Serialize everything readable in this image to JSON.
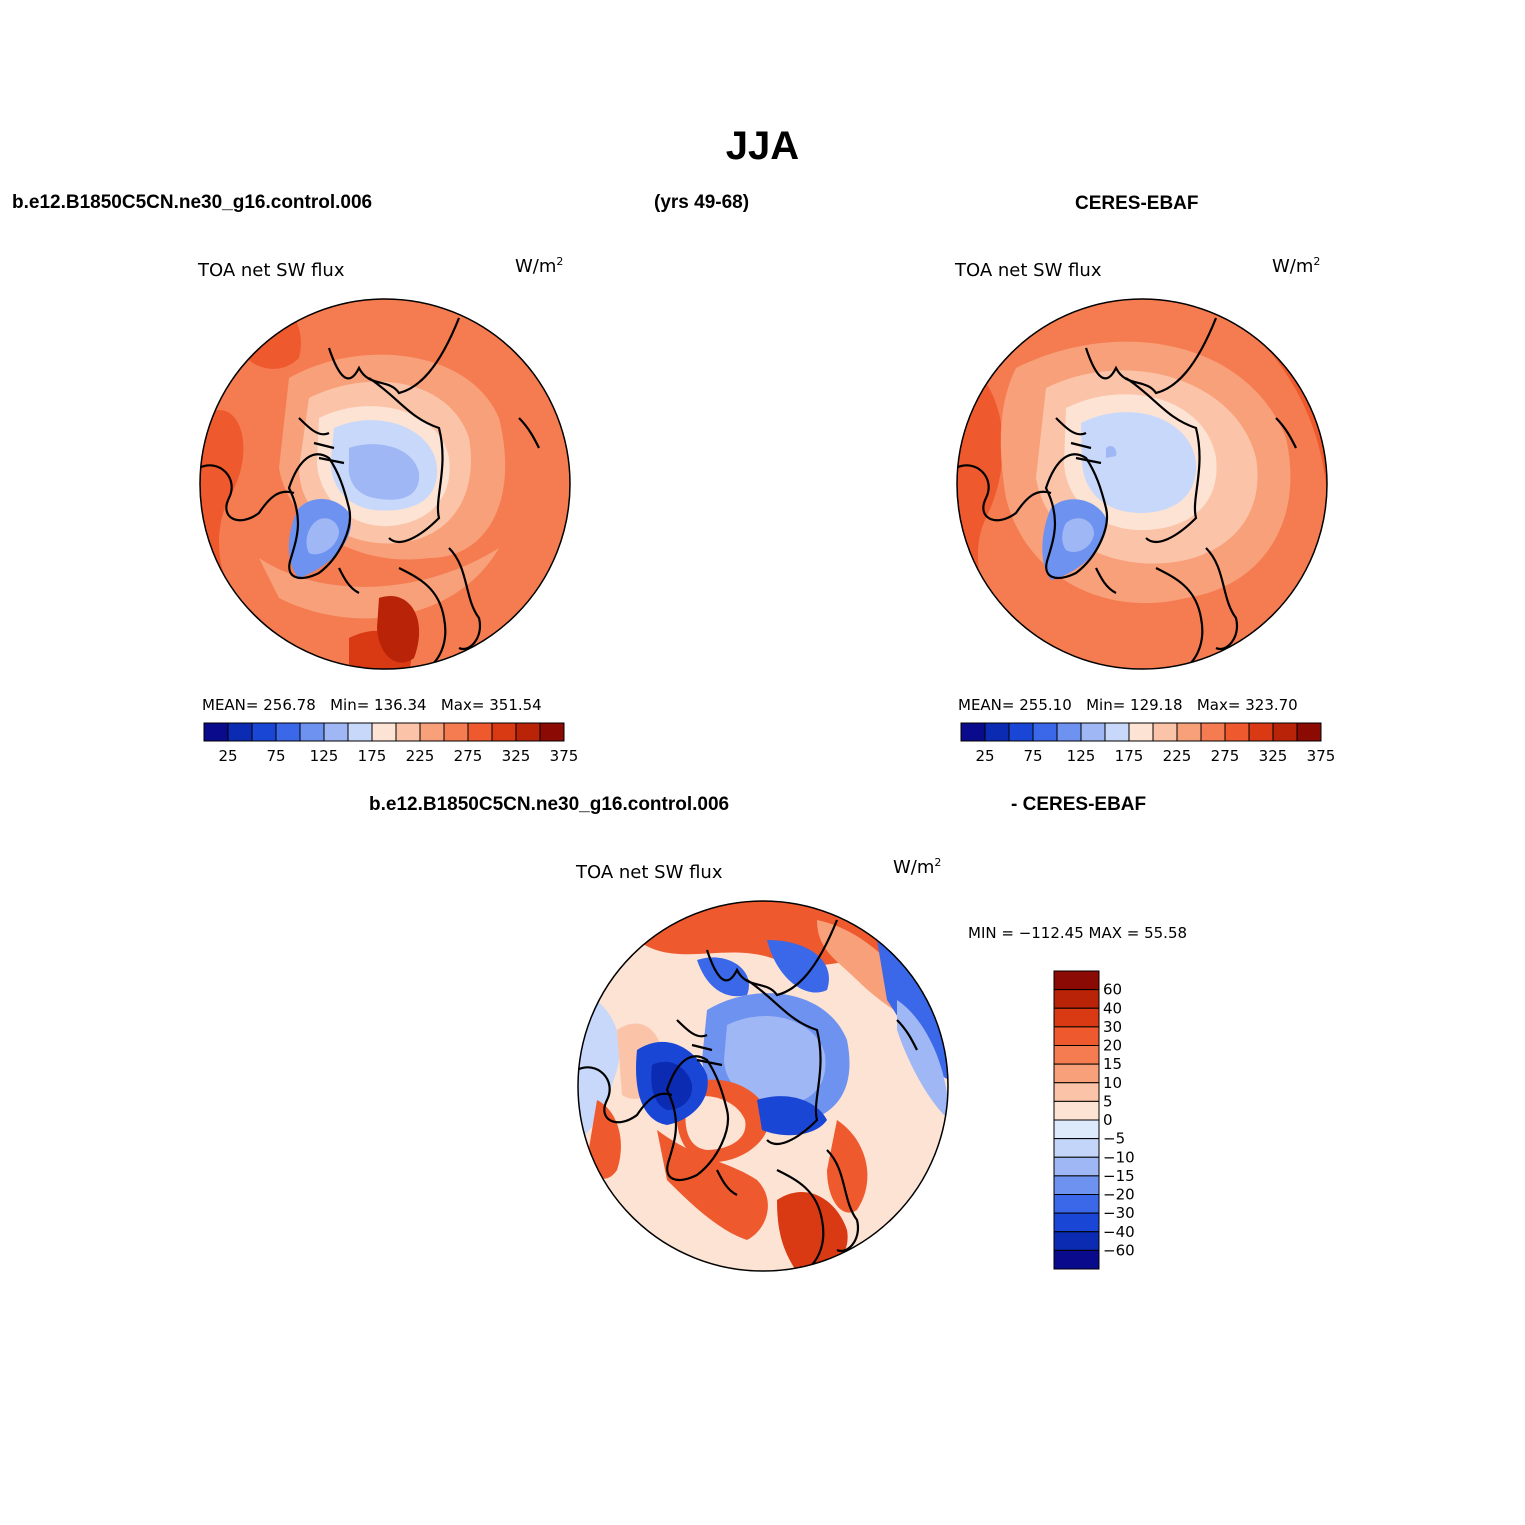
{
  "figure": {
    "title": "JJA",
    "case_label": "b.e12.B1850C5CN.ne30_g16.control.006",
    "years_label": "(yrs 49-68)",
    "obs_label": "CERES-EBAF",
    "diff_case_label": "b.e12.B1850C5CN.ne30_g16.control.006",
    "diff_obs_label": "- CERES-EBAF"
  },
  "panels": {
    "model": {
      "variable": "TOA net SW flux",
      "units": "W/m",
      "units_sup": "2",
      "mean_label": "MEAN=",
      "mean": "256.78",
      "min_label": "Min=",
      "min": "136.34",
      "max_label": "Max=",
      "max": "351.54"
    },
    "obs": {
      "variable": "TOA net SW flux",
      "units": "W/m",
      "units_sup": "2",
      "mean_label": "MEAN=",
      "mean": "255.10",
      "min_label": "Min=",
      "min": "129.18",
      "max_label": "Max=",
      "max": "323.70"
    },
    "diff": {
      "variable": "TOA net SW flux",
      "units": "W/m",
      "units_sup": "2",
      "minmax_text": "MIN = −112.45 MAX =  55.58"
    }
  },
  "colorbars": {
    "abs": {
      "colors": [
        "#0a0a8c",
        "#0b2bb3",
        "#1a46d6",
        "#3a68e8",
        "#6e92f0",
        "#9fb7f5",
        "#c8d8fa",
        "#fce3d4",
        "#fbc4a8",
        "#f8a07a",
        "#f47c50",
        "#ee5a2e",
        "#d93a14",
        "#b92308",
        "#8b0a03"
      ],
      "labels": [
        "25",
        "75",
        "125",
        "175",
        "225",
        "275",
        "325",
        "375"
      ]
    },
    "diff": {
      "colors": [
        "#8b0a03",
        "#b92308",
        "#d93a14",
        "#ee5a2e",
        "#f47c50",
        "#f8a07a",
        "#fbc4a8",
        "#fce3d4",
        "#ddeafb",
        "#c3d5f8",
        "#9fb7f5",
        "#6e92f0",
        "#3a68e8",
        "#1a46d6",
        "#0b2bb3",
        "#0a0a8c"
      ],
      "labels": [
        "60",
        "40",
        "30",
        "20",
        "15",
        "10",
        "5",
        "0",
        "−5",
        "−10",
        "−15",
        "−20",
        "−30",
        "−40",
        "−60"
      ]
    }
  }
}
